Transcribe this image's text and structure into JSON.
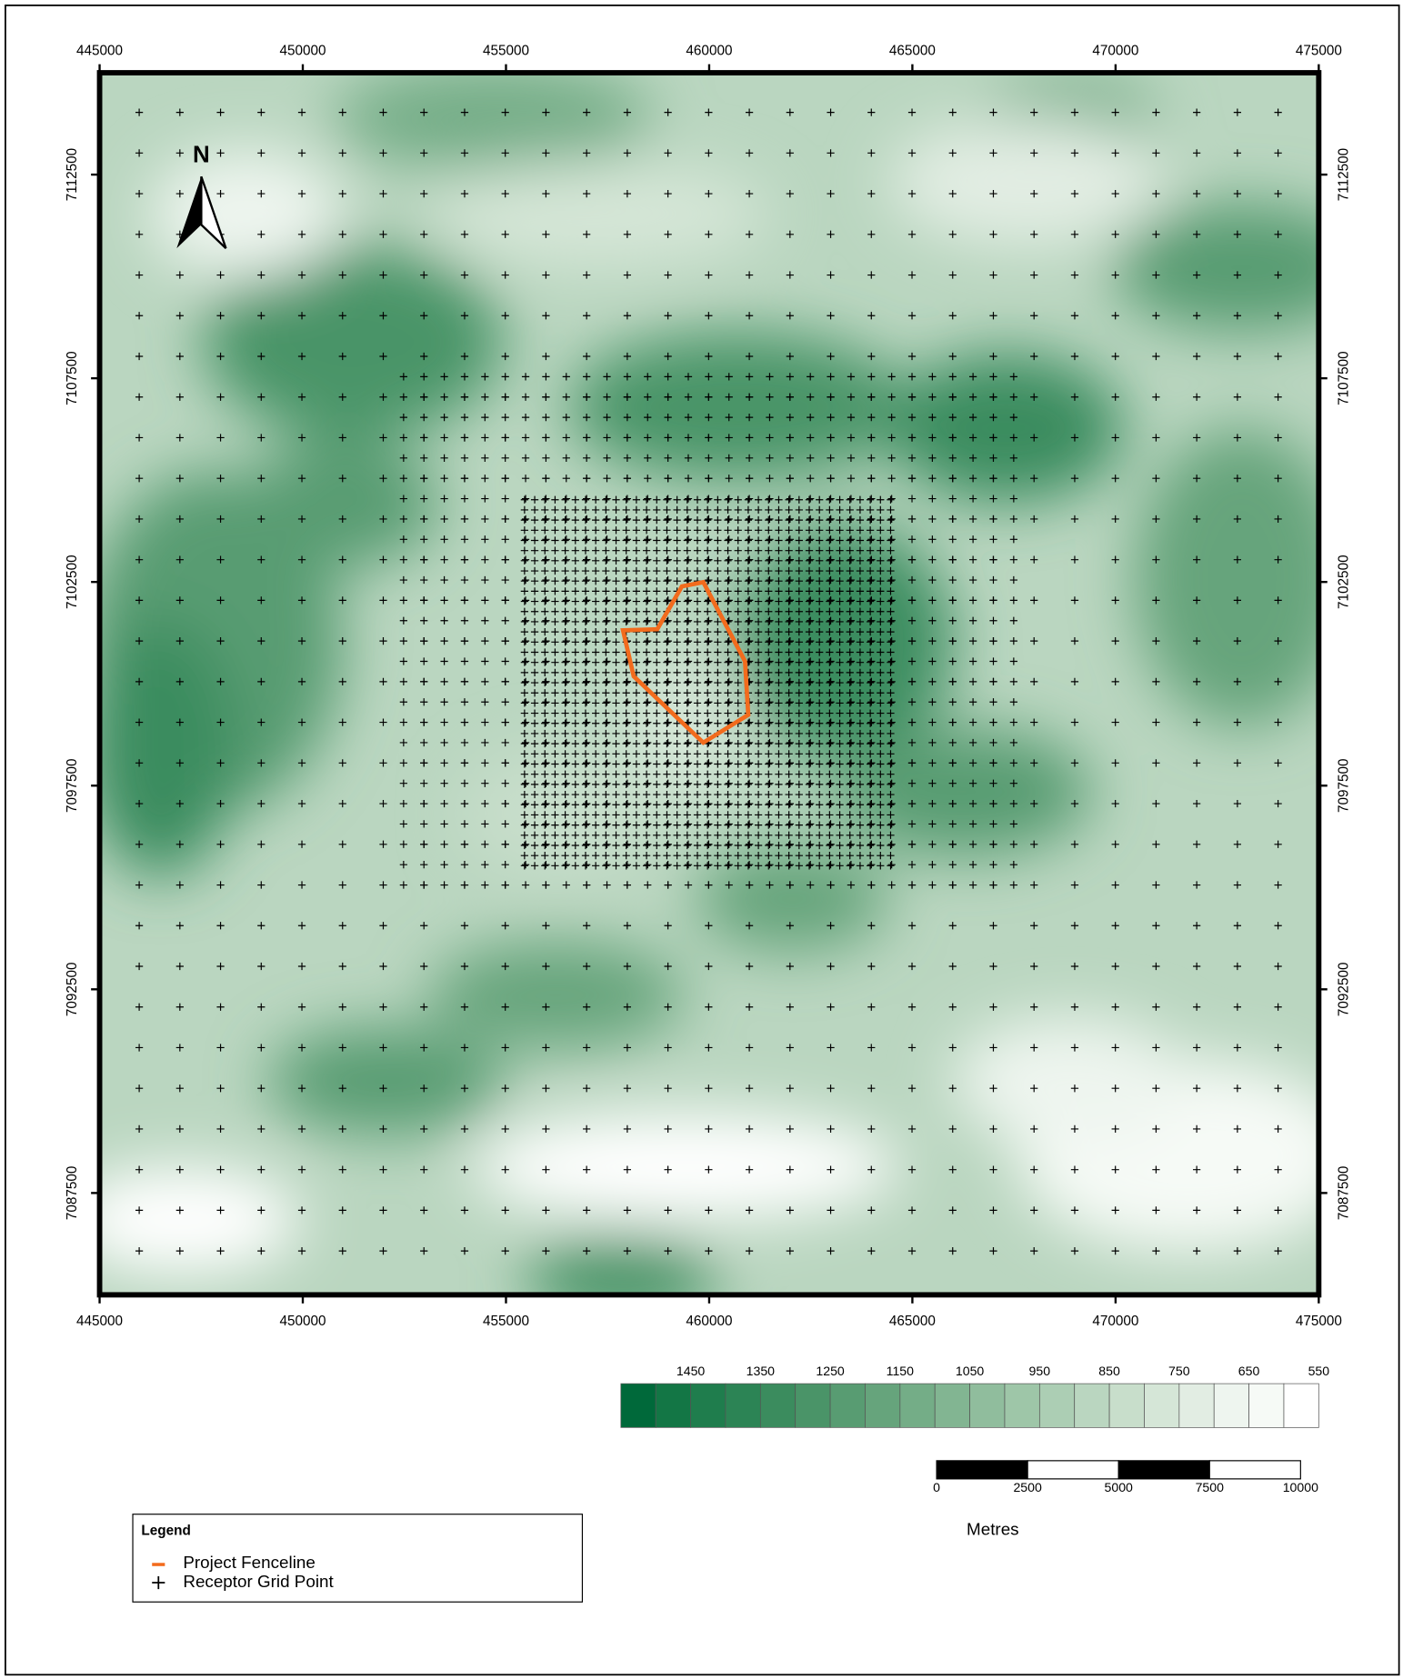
{
  "map": {
    "x_axis": {
      "xlim": [
        445000,
        475000
      ],
      "ticks": [
        445000,
        450000,
        455000,
        460000,
        465000,
        470000,
        475000
      ]
    },
    "y_axis": {
      "ylim": [
        7085000,
        7115000
      ],
      "ticks": [
        7087500,
        7092500,
        7097500,
        7102500,
        7107500,
        7112500
      ]
    },
    "north_label": "N",
    "color_scale": {
      "labels": [
        1450,
        1350,
        1250,
        1150,
        1050,
        950,
        850,
        750,
        650,
        550
      ],
      "colors": [
        "#00693a",
        "#137645",
        "#1f7d4d",
        "#2c8455",
        "#3b8c5e",
        "#4a9468",
        "#589c72",
        "#66a47c",
        "#74ad87",
        "#82b592",
        "#90bd9d",
        "#9ec6a8",
        "#acceb4",
        "#bad6c0",
        "#c8decb",
        "#d5e6d7",
        "#e2ede3",
        "#eef5ef",
        "#f6faf6",
        "#ffffff"
      ]
    },
    "scale_bar": {
      "labels": [
        0,
        2500,
        5000,
        7500,
        10000
      ],
      "unit": "Metres"
    },
    "legend": {
      "title": "Legend",
      "items": [
        "Project Fenceline",
        "Receptor Grid Point"
      ]
    }
  }
}
